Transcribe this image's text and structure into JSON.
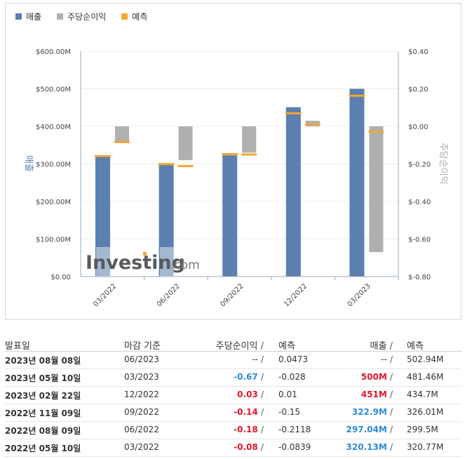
{
  "legend": {
    "revenue": "매출",
    "eps": "주당순이익",
    "forecast": "예측"
  },
  "colors": {
    "revenue": "#5b7fae",
    "eps": "#b0b0b0",
    "forecast": "#f0a830",
    "positive": "#2c8bd6",
    "negative": "#e0162b"
  },
  "watermark": {
    "brand": "Investing",
    "suffix": ".com"
  },
  "chart_data": {
    "type": "bar",
    "categories": [
      "03/2022",
      "06/2022",
      "09/2022",
      "12/2022",
      "03/2023"
    ],
    "ylabel_left": "매출",
    "ylabel_right": "주당순이익",
    "ylim_left": [
      0,
      600
    ],
    "ylim_right": [
      -0.8,
      0.4
    ],
    "yticks_left": [
      "$0.00",
      "$100.00M",
      "$200.00M",
      "$300.00M",
      "$400.00M",
      "$500.00M",
      "$600.00M"
    ],
    "yticks_right": [
      "$-0.80",
      "$-0.60",
      "$-0.40",
      "$-0.20",
      "$0.00",
      "$0.20",
      "$0.40"
    ],
    "series": [
      {
        "name": "매출",
        "axis": "left",
        "values": [
          320.13,
          297.04,
          322.9,
          451,
          500
        ]
      },
      {
        "name": "매출 예측",
        "axis": "left",
        "values": [
          320.77,
          299.5,
          326.01,
          434.7,
          481.46
        ]
      },
      {
        "name": "주당순이익",
        "axis": "right",
        "values": [
          -0.08,
          -0.18,
          -0.14,
          0.03,
          -0.67
        ]
      },
      {
        "name": "주당순이익 예측",
        "axis": "right",
        "values": [
          -0.0839,
          -0.2118,
          -0.15,
          0.01,
          -0.028
        ]
      }
    ]
  },
  "table": {
    "headers": {
      "date": "발표일",
      "period": "마감 기준",
      "eps": "주당순이익",
      "eps_forecast": "예측",
      "revenue": "매출",
      "revenue_forecast": "예측",
      "slash": "/"
    },
    "rows": [
      {
        "date": "2023년 08월 08일",
        "period": "06/2023",
        "eps": "--",
        "eps_class": "neu",
        "eps_forecast": "0.0473",
        "revenue": "--",
        "rev_class": "neu",
        "revenue_forecast": "502.94M"
      },
      {
        "date": "2023년 05월 10일",
        "period": "03/2023",
        "eps": "-0.67",
        "eps_class": "pos",
        "eps_forecast": "-0.028",
        "revenue": "500M",
        "rev_class": "neg",
        "revenue_forecast": "481.46M"
      },
      {
        "date": "2023년 02월 22일",
        "period": "12/2022",
        "eps": "0.03",
        "eps_class": "neg",
        "eps_forecast": "0.01",
        "revenue": "451M",
        "rev_class": "neg",
        "revenue_forecast": "434.7M"
      },
      {
        "date": "2022년 11월 09일",
        "period": "09/2022",
        "eps": "-0.14",
        "eps_class": "neg",
        "eps_forecast": "-0.15",
        "revenue": "322.9M",
        "rev_class": "pos",
        "revenue_forecast": "326.01M"
      },
      {
        "date": "2022년 08월 09일",
        "period": "06/2022",
        "eps": "-0.18",
        "eps_class": "neg",
        "eps_forecast": "-0.2118",
        "revenue": "297.04M",
        "rev_class": "pos",
        "revenue_forecast": "299.5M"
      },
      {
        "date": "2022년 05월 10일",
        "period": "03/2022",
        "eps": "-0.08",
        "eps_class": "neg",
        "eps_forecast": "-0.0839",
        "revenue": "320.13M",
        "rev_class": "pos",
        "revenue_forecast": "320.77M"
      }
    ]
  }
}
